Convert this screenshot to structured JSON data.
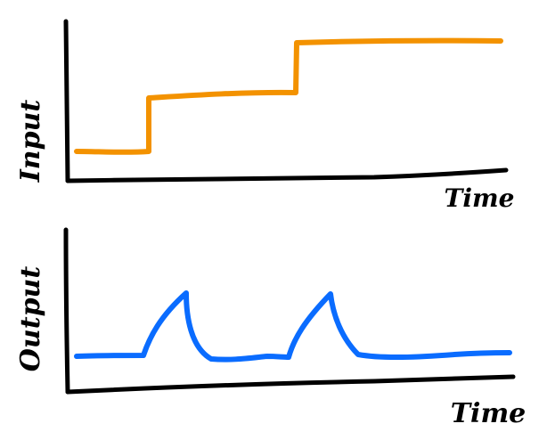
{
  "panels": [
    {
      "id": "input",
      "ylabel": "Input",
      "xlabel": "Time",
      "line_color": "#f39200"
    },
    {
      "id": "output",
      "ylabel": "Output",
      "xlabel": "Time",
      "line_color": "#0a6cff"
    }
  ],
  "axis_color": "#000000"
}
